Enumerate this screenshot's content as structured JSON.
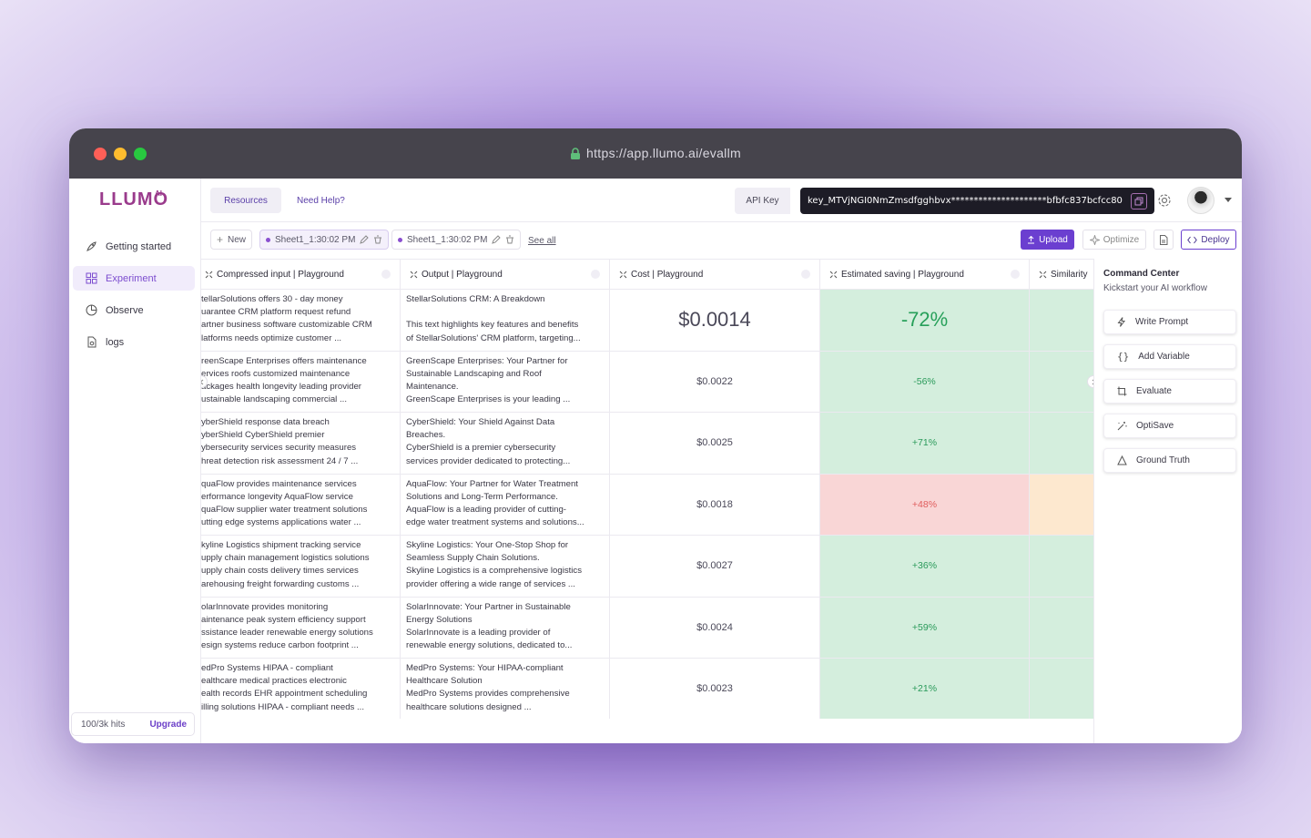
{
  "browser": {
    "url": "https://app.llumo.ai/evallm"
  },
  "brand": {
    "logo_text": "LLUMO",
    "logo_sup": "AI"
  },
  "sidebar": {
    "items": [
      {
        "label": "Getting started",
        "icon": "rocket-icon"
      },
      {
        "label": "Experiment",
        "icon": "grid-icon"
      },
      {
        "label": "Observe",
        "icon": "pie-chart-icon"
      },
      {
        "label": "logs",
        "icon": "file-icon"
      }
    ],
    "active_index": 1,
    "hits": "100/3k hits",
    "upgrade": "Upgrade"
  },
  "topbar": {
    "resources": "Resources",
    "help": "Need Help?",
    "api_key_label": "API Key",
    "api_key": "key_MTVjNGI0NmZmsdfgghbvx*********************bfbfc837bcfcc80"
  },
  "toolbar": {
    "new": "New",
    "sheet1": "Sheet1_1:30:02 PM",
    "sheet2": "Sheet1_1:30:02 PM",
    "see_all": "See all",
    "upload": "Upload",
    "optimize": "Optimize",
    "deploy": "Deploy"
  },
  "table": {
    "columns": [
      "Compressed input | Playground",
      "Output | Playground",
      "Cost | Playground",
      "Estimated saving | Playground",
      "Similarity"
    ],
    "rows": [
      {
        "input": "tellarSolutions offers 30 - day money\nuarantee CRM platform request refund\nartner business software customizable CRM\nlatforms needs optimize customer ...",
        "output": "StellarSolutions CRM: A Breakdown\n\nThis text highlights key features and benefits\nof StellarSolutions' CRM platform, targeting...",
        "cost": "$0.0014",
        "saving": "-72%",
        "saving_state": "good",
        "similarity_state": "good"
      },
      {
        "input": "reenScape Enterprises offers maintenance\nervices roofs customized maintenance\nackages health longevity leading provider\nustainable landscaping commercial ...",
        "output": "GreenScape Enterprises: Your Partner for\nSustainable Landscaping and Roof\nMaintenance.\nGreenScape Enterprises is your leading ...",
        "cost": "$0.0022",
        "saving": "-56%",
        "saving_state": "good",
        "similarity_state": "good"
      },
      {
        "input": "yberShield response data breach\nyberShield CyberShield premier\nybersecurity services security measures\nhreat detection risk assessment 24 / 7 ...",
        "output": "CyberShield: Your Shield Against Data\nBreaches.\nCyberShield is a premier cybersecurity\nservices provider dedicated to protecting...",
        "cost": "$0.0025",
        "saving": "+71%",
        "saving_state": "good",
        "similarity_state": "good"
      },
      {
        "input": "quaFlow provides maintenance services\nerformance longevity AquaFlow service\nquaFlow supplier water treatment solutions\nutting edge systems applications water ...",
        "output": "AquaFlow: Your Partner for Water Treatment\nSolutions and Long-Term Performance.\nAquaFlow is a leading provider of cutting-\nedge water treatment systems and solutions...",
        "cost": "$0.0018",
        "saving": "+48%",
        "saving_state": "bad",
        "similarity_state": "warn"
      },
      {
        "input": "kyline Logistics shipment tracking service\nupply chain management logistics solutions\nupply chain costs delivery times services\narehousing freight forwarding customs ...",
        "output": "Skyline Logistics: Your One-Stop Shop for\nSeamless Supply Chain Solutions.\nSkyline Logistics is a comprehensive logistics\nprovider offering a wide range of services ...",
        "cost": "$0.0027",
        "saving": "+36%",
        "saving_state": "good",
        "similarity_state": "good"
      },
      {
        "input": "olarInnovate provides monitoring\naintenance peak system efficiency support\nssistance leader renewable energy solutions\nesign systems reduce carbon footprint ...",
        "output": "SolarInnovate: Your Partner in Sustainable\nEnergy Solutions\nSolarInnovate is a leading provider of\nrenewable energy solutions, dedicated to...",
        "cost": "$0.0024",
        "saving": "+59%",
        "saving_state": "good",
        "similarity_state": "good"
      },
      {
        "input": "edPro Systems HIPAA - compliant\nealthcare medical practices electronic\nealth records EHR appointment scheduling\nilling solutions HIPAA - compliant needs ...",
        "output": "MedPro Systems: Your HIPAA-compliant\nHealthcare Solution\nMedPro Systems provides comprehensive\nhealthcare solutions designed ...",
        "cost": "$0.0023",
        "saving": "+21%",
        "saving_state": "good",
        "similarity_state": "good"
      }
    ]
  },
  "command_center": {
    "title": "Command Center",
    "subtitle": "Kickstart your AI workflow",
    "actions": [
      {
        "label": "Write Prompt",
        "icon": "bolt-icon"
      },
      {
        "label": "Add Variable",
        "icon": "braces-icon"
      },
      {
        "label": "Evaluate",
        "icon": "crop-icon"
      },
      {
        "label": "OptiSave",
        "icon": "magic-wand-icon"
      },
      {
        "label": "Ground Truth",
        "icon": "triangle-icon"
      }
    ]
  },
  "colors": {
    "accent": "#6b3fd0",
    "good_bg": "#d4eedd",
    "good_text": "#27a05a",
    "bad_bg": "#f9d6d6",
    "bad_text": "#e05d5d",
    "warn_bg": "#fde8cf"
  }
}
